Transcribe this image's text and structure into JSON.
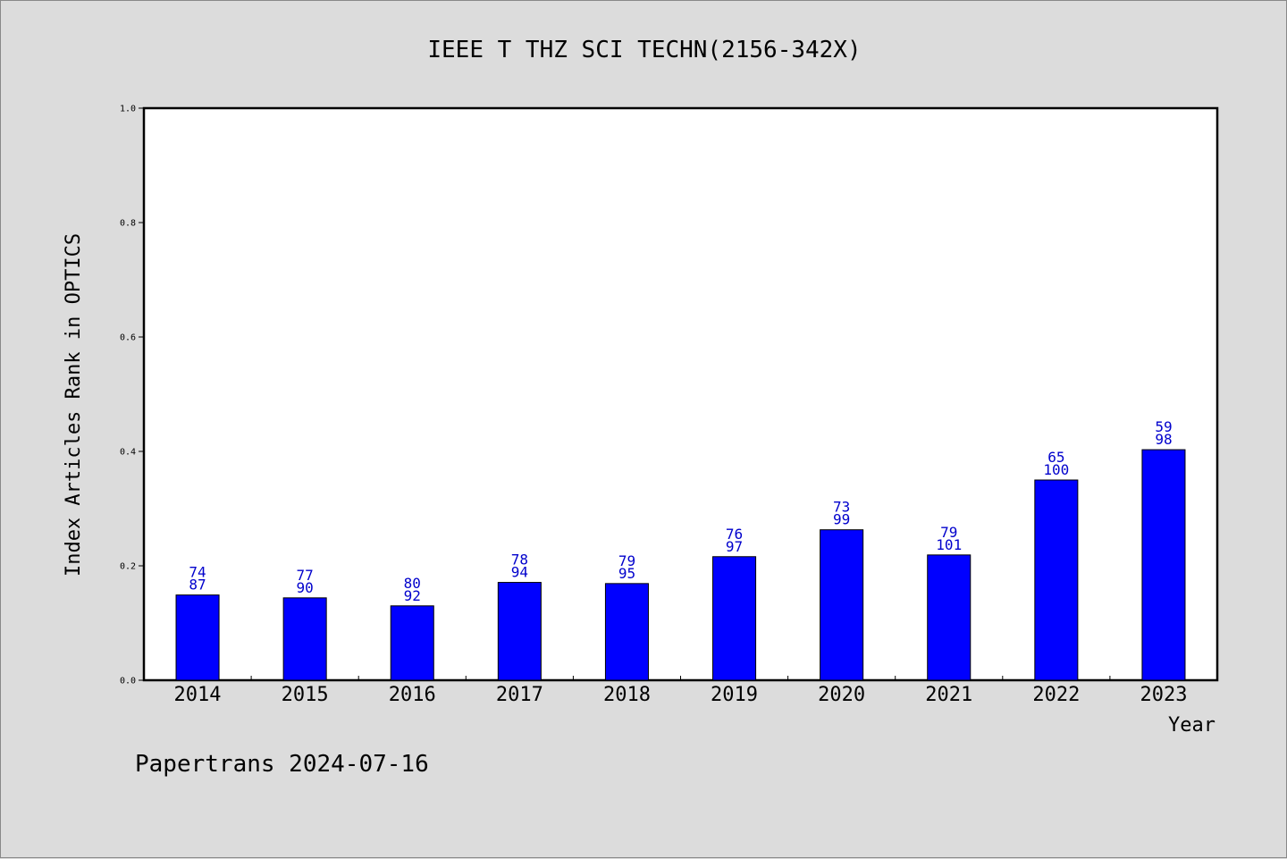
{
  "chart_data": {
    "type": "bar",
    "title": "IEEE T THZ SCI TECHN(2156-342X)",
    "xlabel": "Year",
    "ylabel": "Index Articles Rank in OPTICS",
    "ylim": [
      0,
      1.0
    ],
    "yticks": [
      "0.0",
      "0.2",
      "0.4",
      "0.6",
      "0.8",
      "1.0"
    ],
    "categories": [
      "2014",
      "2015",
      "2016",
      "2017",
      "2018",
      "2019",
      "2020",
      "2021",
      "2022",
      "2023"
    ],
    "values": [
      0.149,
      0.144,
      0.13,
      0.171,
      0.169,
      0.216,
      0.263,
      0.219,
      0.35,
      0.403
    ],
    "rank_labels": [
      "74",
      "77",
      "80",
      "78",
      "79",
      "76",
      "73",
      "79",
      "65",
      "59"
    ],
    "total_labels": [
      "87",
      "90",
      "92",
      "94",
      "95",
      "97",
      "99",
      "101",
      "100",
      "98"
    ],
    "bar_color": "#0000ff",
    "label_color": "#0000cc",
    "grid": false
  },
  "footer": "Papertrans 2024-07-16"
}
